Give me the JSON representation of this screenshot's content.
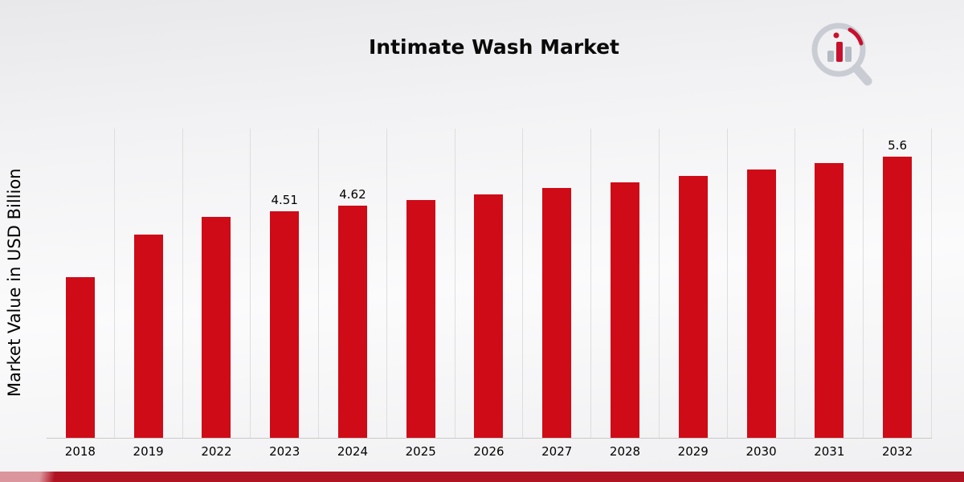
{
  "header": {
    "title": "Intimate Wash Market",
    "logo_icon": "magnifier-bar-chart-logo"
  },
  "chart_data": {
    "type": "bar",
    "title": "Intimate Wash Market",
    "xlabel": "",
    "ylabel": "Market Value in USD Billion",
    "categories": [
      "2018",
      "2019",
      "2022",
      "2023",
      "2024",
      "2025",
      "2026",
      "2027",
      "2028",
      "2029",
      "2030",
      "2031",
      "2032"
    ],
    "values": [
      3.2,
      4.05,
      4.4,
      4.51,
      4.62,
      4.73,
      4.85,
      4.97,
      5.09,
      5.21,
      5.34,
      5.47,
      5.6
    ],
    "data_labels": [
      "",
      "",
      "",
      "4.51",
      "4.62",
      "",
      "",
      "",
      "",
      "",
      "",
      "",
      "5.6"
    ],
    "bar_color": "#CE0B17",
    "ylim": [
      0,
      6.16
    ],
    "grid": "vertical-light",
    "legend": "none"
  },
  "footer": {
    "accent_color": "#B01423"
  }
}
